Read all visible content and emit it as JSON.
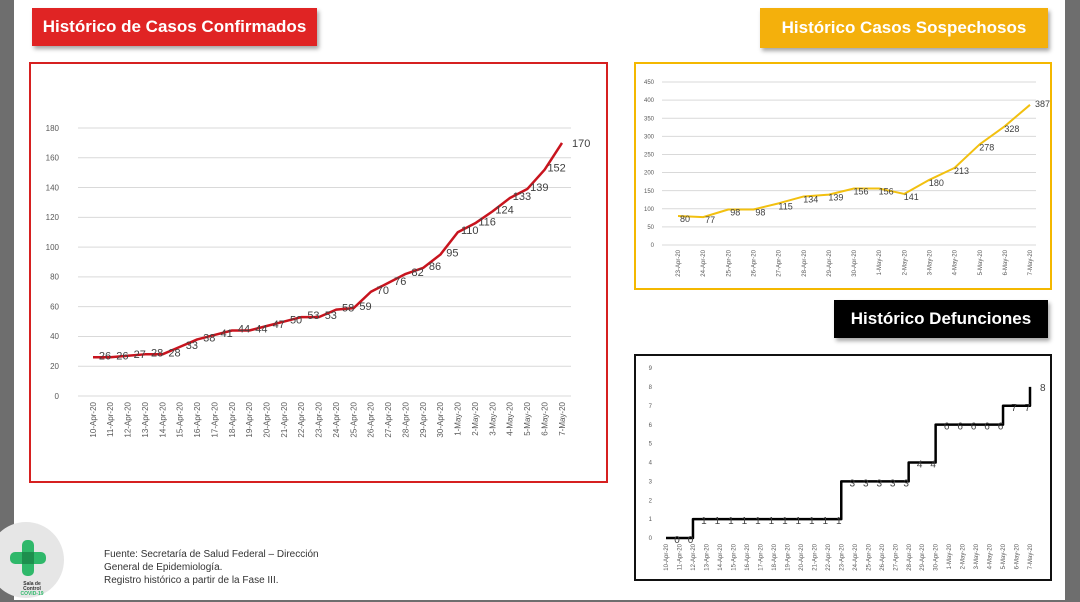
{
  "titles": {
    "confirmados": "Histórico de Casos Confirmados",
    "sospechosos": "Histórico Casos Sospechosos",
    "defunciones": "Histórico Defunciones"
  },
  "source": {
    "line1": "Fuente: Secretaría de Salud Federal – Dirección",
    "line2": "General de Epidemiología.",
    "line3": "Registro histórico a partir de la Fase III."
  },
  "logo": {
    "line1": "Sala de",
    "line2": "Control",
    "line3": "COVID-19"
  },
  "colors": {
    "confirmados": "#c8141e",
    "sospechosos": "#f2c010",
    "defunciones": "#000000"
  },
  "chart_data": [
    {
      "type": "line",
      "title": "Histórico de Casos Confirmados",
      "categories": [
        "10-Apr-20",
        "11-Apr-20",
        "12-Apr-20",
        "13-Apr-20",
        "14-Apr-20",
        "15-Apr-20",
        "16-Apr-20",
        "17-Apr-20",
        "18-Apr-20",
        "19-Apr-20",
        "20-Apr-20",
        "21-Apr-20",
        "22-Apr-20",
        "23-Apr-20",
        "24-Apr-20",
        "25-Apr-20",
        "26-Apr-20",
        "27-Apr-20",
        "28-Apr-20",
        "29-Apr-20",
        "30-Apr-20",
        "1-May-20",
        "2-May-20",
        "3-May-20",
        "4-May-20",
        "5-May-20",
        "6-May-20",
        "7-May-20"
      ],
      "values": [
        26,
        26,
        27,
        28,
        28,
        33,
        38,
        41,
        44,
        44,
        47,
        50,
        53,
        53,
        58,
        59,
        70,
        76,
        82,
        86,
        95,
        110,
        116,
        124,
        133,
        139,
        152,
        170
      ],
      "ylim": [
        0,
        180
      ],
      "yticks": [
        0,
        20,
        40,
        60,
        80,
        100,
        120,
        140,
        160,
        180
      ],
      "grid": true
    },
    {
      "type": "line",
      "title": "Histórico Casos Sospechosos",
      "categories": [
        "23-Apr-20",
        "24-Apr-20",
        "25-Apr-20",
        "26-Apr-20",
        "27-Apr-20",
        "28-Apr-20",
        "29-Apr-20",
        "30-Apr-20",
        "1-May-20",
        "2-May-20",
        "3-May-20",
        "4-May-20",
        "5-May-20",
        "6-May-20",
        "7-May-20"
      ],
      "values": [
        80,
        77,
        98,
        98,
        115,
        134,
        139,
        156,
        156,
        141,
        180,
        213,
        278,
        328,
        387
      ],
      "ylim": [
        0,
        450
      ],
      "yticks": [
        0,
        50,
        100,
        150,
        200,
        250,
        300,
        350,
        400,
        450
      ],
      "grid": true
    },
    {
      "type": "line",
      "title": "Histórico Defunciones",
      "categories": [
        "10-Apr-20",
        "11-Apr-20",
        "12-Apr-20",
        "13-Apr-20",
        "14-Apr-20",
        "15-Apr-20",
        "16-Apr-20",
        "17-Apr-20",
        "18-Apr-20",
        "19-Apr-20",
        "20-Apr-20",
        "21-Apr-20",
        "22-Apr-20",
        "23-Apr-20",
        "24-Apr-20",
        "25-Apr-20",
        "26-Apr-20",
        "27-Apr-20",
        "28-Apr-20",
        "29-Apr-20",
        "30-Apr-20",
        "1-May-20",
        "2-May-20",
        "3-May-20",
        "4-May-20",
        "5-May-20",
        "6-May-20",
        "7-May-20"
      ],
      "values": [
        0,
        0,
        1,
        1,
        1,
        1,
        1,
        1,
        1,
        1,
        1,
        1,
        1,
        3,
        3,
        3,
        3,
        3,
        4,
        4,
        6,
        6,
        6,
        6,
        6,
        7,
        7,
        8
      ],
      "ylim": [
        0,
        9
      ],
      "yticks": [
        0,
        1,
        2,
        3,
        4,
        5,
        6,
        7,
        8,
        9
      ],
      "grid": false
    }
  ]
}
